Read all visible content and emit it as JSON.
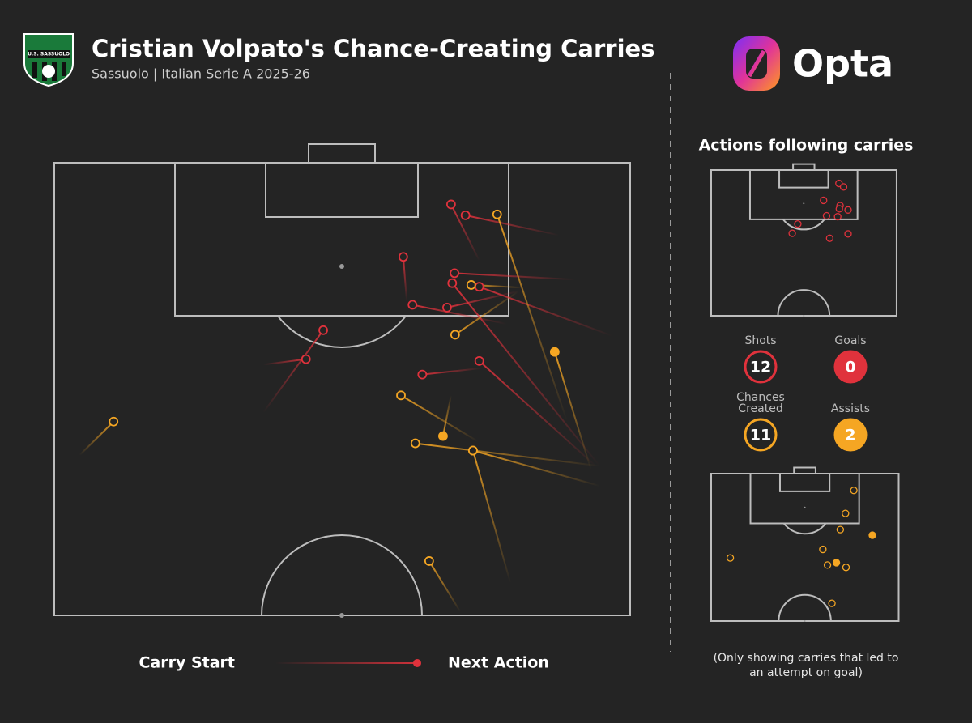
{
  "chart_data": {
    "type": "pitch",
    "title": "Cristian Volpato's Chance-Creating Carries",
    "subtitle": "Sassuolo | Italian Serie A 2025-26",
    "badge": "U.S. SASSUOLO",
    "logo": "Opta",
    "inset_title": "Actions following carries",
    "note": "(Only showing carries that led to an attempt on goal)",
    "legend": {
      "start": "Carry Start",
      "end": "Next Action",
      "color": "#e0323c"
    },
    "xlim": [
      0,
      100
    ],
    "ylim": [
      100,
      50
    ],
    "series": [
      {
        "name": "Shots",
        "value": 12,
        "color": "#e0323c",
        "filled": false,
        "inset": "top",
        "carries": [
          {
            "start": [
              73.8,
              89.2
            ],
            "end": [
              68.9,
              95.4
            ]
          },
          {
            "start": [
              87.6,
              92.0
            ],
            "end": [
              71.4,
              94.2
            ]
          },
          {
            "start": [
              61.2,
              84.7
            ],
            "end": [
              60.6,
              89.6
            ]
          },
          {
            "start": [
              90.4,
              87.1
            ],
            "end": [
              69.5,
              87.8
            ]
          },
          {
            "start": [
              94.7,
              66.5
            ],
            "end": [
              69.1,
              86.7
            ]
          },
          {
            "start": [
              96.8,
              80.9
            ],
            "end": [
              73.8,
              86.3
            ]
          },
          {
            "start": [
              78.5,
              82.2
            ],
            "end": [
              62.2,
              84.3
            ]
          },
          {
            "start": [
              80.6,
              85.8
            ],
            "end": [
              68.2,
              84.0
            ]
          },
          {
            "start": [
              36.3,
              72.4
            ],
            "end": [
              46.7,
              81.5
            ]
          },
          {
            "start": [
              36.3,
              77.7
            ],
            "end": [
              43.7,
              78.3
            ]
          },
          {
            "start": [
              74.3,
              77.3
            ],
            "end": [
              63.9,
              76.6
            ]
          },
          {
            "start": [
              94.0,
              66.5
            ],
            "end": [
              73.8,
              78.1
            ]
          }
        ]
      },
      {
        "name": "Goals",
        "value": 0,
        "color": "#e0323c",
        "filled": true,
        "inset": "top",
        "carries": []
      },
      {
        "name": "Chances Created",
        "value": 11,
        "color": "#f5a623",
        "filled": false,
        "inset": "bottom",
        "carries": [
          {
            "start": [
              89.0,
              71.5
            ],
            "end": [
              76.9,
              94.3
            ]
          },
          {
            "start": [
              81.3,
              86.2
            ],
            "end": [
              72.4,
              86.5
            ]
          },
          {
            "start": [
              80.6,
              85.8
            ],
            "end": [
              69.6,
              81.0
            ]
          },
          {
            "start": [
              73.6,
              69.2
            ],
            "end": [
              60.2,
              74.3
            ]
          },
          {
            "start": [
              94.7,
              66.5
            ],
            "end": [
              62.7,
              69.0
            ]
          },
          {
            "start": [
              79.2,
              53.6
            ],
            "end": [
              72.7,
              68.2
            ]
          },
          {
            "start": [
              94.7,
              64.3
            ],
            "end": [
              72.7,
              68.2
            ]
          },
          {
            "start": [
              4.4,
              67.7
            ],
            "end": [
              10.3,
              71.4
            ]
          },
          {
            "start": [
              70.5,
              50.4
            ],
            "end": [
              65.1,
              56.0
            ]
          }
        ]
      },
      {
        "name": "Assists",
        "value": 2,
        "color": "#f5a623",
        "filled": true,
        "inset": "bottom",
        "carries": [
          {
            "start": [
              93.2,
              66.1
            ],
            "end": [
              86.9,
              79.1
            ]
          },
          {
            "start": [
              68.9,
              74.3
            ],
            "end": [
              67.5,
              69.8
            ]
          }
        ]
      }
    ]
  }
}
